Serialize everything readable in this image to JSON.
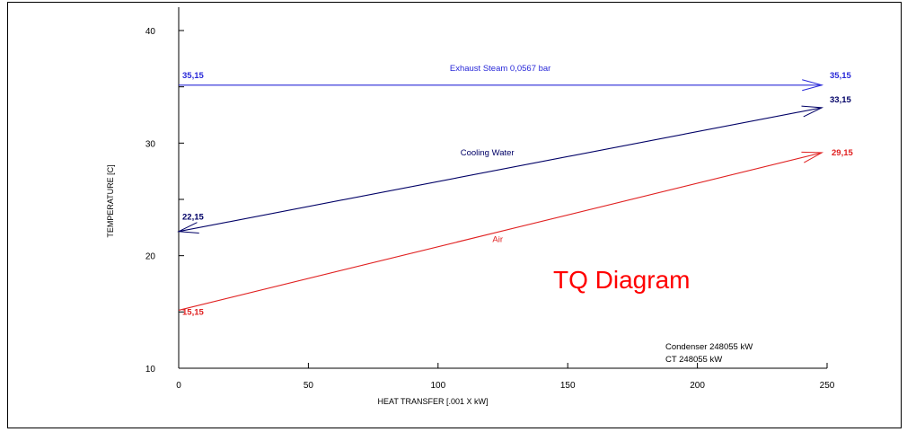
{
  "overlay_title": "TQ Diagram",
  "notes": [
    "Condenser 248055  kW",
    "CT 248055  kW"
  ],
  "chart_data": {
    "type": "line",
    "xlabel": "HEAT TRANSFER  [.001 X kW]",
    "ylabel": "TEMPERATURE [C]",
    "xlim": [
      0,
      250
    ],
    "ylim": [
      10,
      40
    ],
    "x_ticks": [
      0,
      50,
      100,
      150,
      200,
      250
    ],
    "y_ticks": [
      10,
      20,
      30,
      40
    ],
    "grid": false,
    "series": [
      {
        "name": "Exhaust Steam 0,0567 bar",
        "color": "#2828d8",
        "x": [
          0,
          248
        ],
        "y": [
          35.15,
          35.15
        ],
        "start_label": "35,15",
        "end_label": "35,15",
        "arrow": "end"
      },
      {
        "name": "Cooling Water",
        "color": "#000066",
        "x": [
          0,
          248
        ],
        "y": [
          22.15,
          33.15
        ],
        "start_label": "22,15",
        "end_label": "33,15",
        "arrow": "both"
      },
      {
        "name": "Air",
        "color": "#e02020",
        "x": [
          0,
          248
        ],
        "y": [
          15.15,
          29.15
        ],
        "start_label": "15,15",
        "end_label": "29,15",
        "arrow": "end"
      }
    ]
  }
}
